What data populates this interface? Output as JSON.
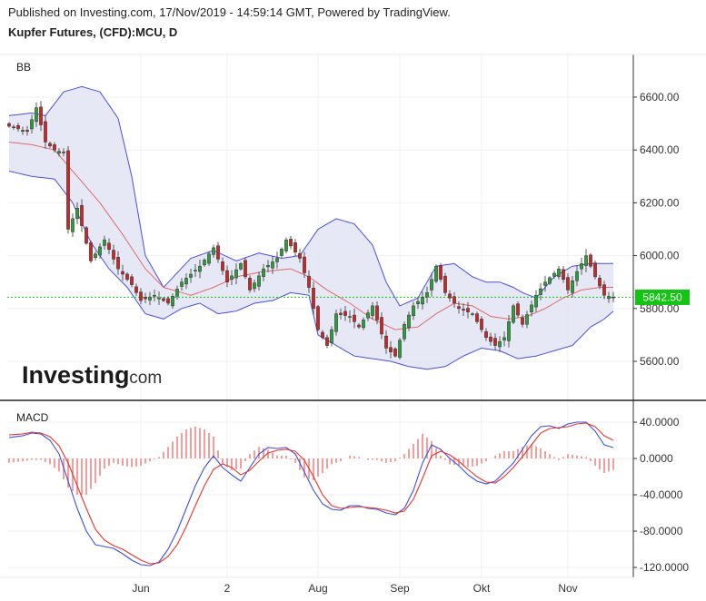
{
  "header": {
    "published": "Published on Investing.com, 17/Nov/2019 - 14:59:14 GMT, Powered by TradingView.",
    "title": "Kupfer Futures, (CFD):MCU, D"
  },
  "logo": {
    "main": "Investing",
    "suffix": ".com"
  },
  "colors": {
    "bb_band": "#4a4fe0",
    "bb_fill": "#e3e4f5",
    "bb_mid": "#e06a6a",
    "up": "#2e9c3c",
    "down": "#c62828",
    "last_price": "#13c413",
    "macd": "#3d4fe0",
    "signal": "#e8352a",
    "hist": "#f07575"
  },
  "chart_data": [
    {
      "type": "line",
      "panel_label": "BB",
      "subtype": "candlestick with bollinger bands",
      "y_ticks": [
        5600,
        5800,
        6000,
        6200,
        6400,
        6600
      ],
      "ylim": [
        5460,
        6760
      ],
      "last_price_label": "5842.50",
      "last_price": 5842.5,
      "x_tick_labels": [
        "Jun",
        "2",
        "Aug",
        "Sep",
        "Okt",
        "Nov"
      ],
      "x_tick_bar_index": [
        29,
        48,
        68,
        86,
        104,
        123
      ],
      "bar_count": 134,
      "close_anchors": [
        [
          0,
          6490
        ],
        [
          4,
          6470
        ],
        [
          6,
          6560
        ],
        [
          8,
          6430
        ],
        [
          10,
          6400
        ],
        [
          12,
          6390
        ],
        [
          13,
          6100
        ],
        [
          15,
          6180
        ],
        [
          18,
          5980
        ],
        [
          21,
          6060
        ],
        [
          24,
          5950
        ],
        [
          27,
          5890
        ],
        [
          29,
          5830
        ],
        [
          32,
          5850
        ],
        [
          35,
          5820
        ],
        [
          38,
          5900
        ],
        [
          42,
          5960
        ],
        [
          45,
          6030
        ],
        [
          48,
          5900
        ],
        [
          51,
          5970
        ],
        [
          53,
          5870
        ],
        [
          56,
          5950
        ],
        [
          59,
          5990
        ],
        [
          61,
          6060
        ],
        [
          64,
          5990
        ],
        [
          66,
          5880
        ],
        [
          68,
          5720
        ],
        [
          70,
          5660
        ],
        [
          72,
          5780
        ],
        [
          75,
          5770
        ],
        [
          77,
          5730
        ],
        [
          80,
          5810
        ],
        [
          83,
          5650
        ],
        [
          85,
          5620
        ],
        [
          87,
          5740
        ],
        [
          89,
          5810
        ],
        [
          92,
          5860
        ],
        [
          94,
          5960
        ],
        [
          96,
          5860
        ],
        [
          99,
          5800
        ],
        [
          102,
          5780
        ],
        [
          105,
          5690
        ],
        [
          107,
          5660
        ],
        [
          109,
          5690
        ],
        [
          111,
          5810
        ],
        [
          113,
          5740
        ],
        [
          116,
          5850
        ],
        [
          118,
          5900
        ],
        [
          121,
          5950
        ],
        [
          123,
          5870
        ],
        [
          125,
          5940
        ],
        [
          127,
          6000
        ],
        [
          129,
          5920
        ],
        [
          131,
          5850
        ],
        [
          133,
          5842
        ]
      ],
      "bb_upper_anchors": [
        [
          0,
          6530
        ],
        [
          5,
          6540
        ],
        [
          8,
          6530
        ],
        [
          12,
          6620
        ],
        [
          16,
          6640
        ],
        [
          20,
          6620
        ],
        [
          24,
          6520
        ],
        [
          27,
          6300
        ],
        [
          30,
          6000
        ],
        [
          34,
          5880
        ],
        [
          40,
          5990
        ],
        [
          45,
          6020
        ],
        [
          50,
          5980
        ],
        [
          55,
          6010
        ],
        [
          60,
          5990
        ],
        [
          64,
          6000
        ],
        [
          68,
          6100
        ],
        [
          72,
          6140
        ],
        [
          76,
          6120
        ],
        [
          80,
          6040
        ],
        [
          83,
          5900
        ],
        [
          86,
          5810
        ],
        [
          90,
          5840
        ],
        [
          94,
          5960
        ],
        [
          98,
          5970
        ],
        [
          102,
          5920
        ],
        [
          105,
          5900
        ],
        [
          108,
          5900
        ],
        [
          111,
          5880
        ],
        [
          113,
          5860
        ],
        [
          116,
          5840
        ],
        [
          120,
          5920
        ],
        [
          124,
          5960
        ],
        [
          128,
          5970
        ],
        [
          133,
          5970
        ]
      ],
      "bb_mid_anchors": [
        [
          0,
          6430
        ],
        [
          5,
          6420
        ],
        [
          10,
          6400
        ],
        [
          15,
          6300
        ],
        [
          20,
          6200
        ],
        [
          25,
          6080
        ],
        [
          30,
          5950
        ],
        [
          34,
          5880
        ],
        [
          40,
          5850
        ],
        [
          45,
          5880
        ],
        [
          50,
          5920
        ],
        [
          56,
          5940
        ],
        [
          62,
          5950
        ],
        [
          66,
          5920
        ],
        [
          70,
          5870
        ],
        [
          75,
          5820
        ],
        [
          80,
          5760
        ],
        [
          85,
          5720
        ],
        [
          90,
          5730
        ],
        [
          94,
          5780
        ],
        [
          98,
          5820
        ],
        [
          102,
          5810
        ],
        [
          106,
          5770
        ],
        [
          110,
          5760
        ],
        [
          114,
          5770
        ],
        [
          118,
          5800
        ],
        [
          122,
          5840
        ],
        [
          126,
          5870
        ],
        [
          130,
          5880
        ],
        [
          133,
          5880
        ]
      ],
      "bb_lower_anchors": [
        [
          0,
          6320
        ],
        [
          5,
          6300
        ],
        [
          10,
          6290
        ],
        [
          14,
          6200
        ],
        [
          18,
          6050
        ],
        [
          22,
          5950
        ],
        [
          26,
          5880
        ],
        [
          30,
          5780
        ],
        [
          34,
          5760
        ],
        [
          38,
          5800
        ],
        [
          42,
          5820
        ],
        [
          46,
          5780
        ],
        [
          50,
          5790
        ],
        [
          54,
          5820
        ],
        [
          58,
          5830
        ],
        [
          62,
          5860
        ],
        [
          66,
          5850
        ],
        [
          68,
          5700
        ],
        [
          72,
          5660
        ],
        [
          76,
          5620
        ],
        [
          80,
          5610
        ],
        [
          84,
          5600
        ],
        [
          88,
          5580
        ],
        [
          92,
          5570
        ],
        [
          96,
          5580
        ],
        [
          100,
          5620
        ],
        [
          104,
          5650
        ],
        [
          108,
          5640
        ],
        [
          112,
          5610
        ],
        [
          116,
          5620
        ],
        [
          120,
          5640
        ],
        [
          124,
          5660
        ],
        [
          128,
          5730
        ],
        [
          131,
          5760
        ],
        [
          133,
          5790
        ]
      ]
    },
    {
      "type": "line",
      "panel_label": "MACD",
      "y_ticks": [
        -120,
        -80,
        -40,
        0,
        40
      ],
      "y_tick_labels": [
        "-120.0000",
        "-80.0000",
        "-40.0000",
        "0.0000",
        "40.0000"
      ],
      "ylim": [
        -128,
        54
      ],
      "series": [
        {
          "role": "macd",
          "anchors": [
            [
              0,
              23
            ],
            [
              3,
              25
            ],
            [
              5,
              28
            ],
            [
              7,
              27
            ],
            [
              9,
              20
            ],
            [
              11,
              5
            ],
            [
              13,
              -25
            ],
            [
              15,
              -55
            ],
            [
              17,
              -80
            ],
            [
              19,
              -95
            ],
            [
              21,
              -97
            ],
            [
              23,
              -99
            ],
            [
              25,
              -105
            ],
            [
              27,
              -112
            ],
            [
              29,
              -117
            ],
            [
              31,
              -118
            ],
            [
              33,
              -114
            ],
            [
              35,
              -100
            ],
            [
              37,
              -80
            ],
            [
              39,
              -55
            ],
            [
              41,
              -30
            ],
            [
              43,
              -10
            ],
            [
              45,
              3
            ],
            [
              47,
              -10
            ],
            [
              49,
              -18
            ],
            [
              51,
              -25
            ],
            [
              53,
              -10
            ],
            [
              55,
              5
            ],
            [
              57,
              12
            ],
            [
              59,
              11
            ],
            [
              61,
              12
            ],
            [
              63,
              5
            ],
            [
              65,
              -15
            ],
            [
              67,
              -35
            ],
            [
              69,
              -50
            ],
            [
              71,
              -56
            ],
            [
              73,
              -57
            ],
            [
              75,
              -52
            ],
            [
              77,
              -52
            ],
            [
              79,
              -55
            ],
            [
              81,
              -56
            ],
            [
              83,
              -60
            ],
            [
              85,
              -62
            ],
            [
              87,
              -55
            ],
            [
              89,
              -35
            ],
            [
              91,
              -5
            ],
            [
              93,
              15
            ],
            [
              95,
              10
            ],
            [
              97,
              0
            ],
            [
              99,
              -8
            ],
            [
              101,
              -18
            ],
            [
              103,
              -25
            ],
            [
              105,
              -28
            ],
            [
              107,
              -25
            ],
            [
              109,
              -15
            ],
            [
              111,
              -5
            ],
            [
              113,
              10
            ],
            [
              115,
              25
            ],
            [
              117,
              35
            ],
            [
              119,
              36
            ],
            [
              121,
              33
            ],
            [
              123,
              38
            ],
            [
              125,
              40
            ],
            [
              127,
              40
            ],
            [
              129,
              30
            ],
            [
              131,
              15
            ],
            [
              133,
              12
            ]
          ]
        },
        {
          "role": "signal",
          "anchors": [
            [
              0,
              26
            ],
            [
              3,
              27
            ],
            [
              5,
              29
            ],
            [
              7,
              28
            ],
            [
              9,
              24
            ],
            [
              11,
              14
            ],
            [
              13,
              -5
            ],
            [
              15,
              -30
            ],
            [
              17,
              -55
            ],
            [
              19,
              -78
            ],
            [
              21,
              -90
            ],
            [
              23,
              -96
            ],
            [
              25,
              -100
            ],
            [
              27,
              -106
            ],
            [
              29,
              -112
            ],
            [
              31,
              -116
            ],
            [
              33,
              -115
            ],
            [
              35,
              -108
            ],
            [
              37,
              -95
            ],
            [
              39,
              -75
            ],
            [
              41,
              -52
            ],
            [
              43,
              -30
            ],
            [
              45,
              -12
            ],
            [
              47,
              -6
            ],
            [
              49,
              -10
            ],
            [
              51,
              -18
            ],
            [
              53,
              -13
            ],
            [
              55,
              -3
            ],
            [
              57,
              6
            ],
            [
              59,
              9
            ],
            [
              61,
              10
            ],
            [
              63,
              8
            ],
            [
              65,
              -2
            ],
            [
              67,
              -20
            ],
            [
              69,
              -40
            ],
            [
              71,
              -52
            ],
            [
              73,
              -55
            ],
            [
              75,
              -54
            ],
            [
              77,
              -53
            ],
            [
              79,
              -54
            ],
            [
              81,
              -55
            ],
            [
              83,
              -57
            ],
            [
              85,
              -60
            ],
            [
              87,
              -58
            ],
            [
              89,
              -45
            ],
            [
              91,
              -22
            ],
            [
              93,
              3
            ],
            [
              95,
              8
            ],
            [
              97,
              4
            ],
            [
              99,
              -3
            ],
            [
              101,
              -12
            ],
            [
              103,
              -20
            ],
            [
              105,
              -26
            ],
            [
              107,
              -27
            ],
            [
              109,
              -20
            ],
            [
              111,
              -10
            ],
            [
              113,
              2
            ],
            [
              115,
              15
            ],
            [
              117,
              28
            ],
            [
              119,
              33
            ],
            [
              121,
              34
            ],
            [
              123,
              35
            ],
            [
              125,
              38
            ],
            [
              127,
              39
            ],
            [
              129,
              35
            ],
            [
              131,
              25
            ],
            [
              133,
              20
            ]
          ]
        }
      ]
    }
  ]
}
